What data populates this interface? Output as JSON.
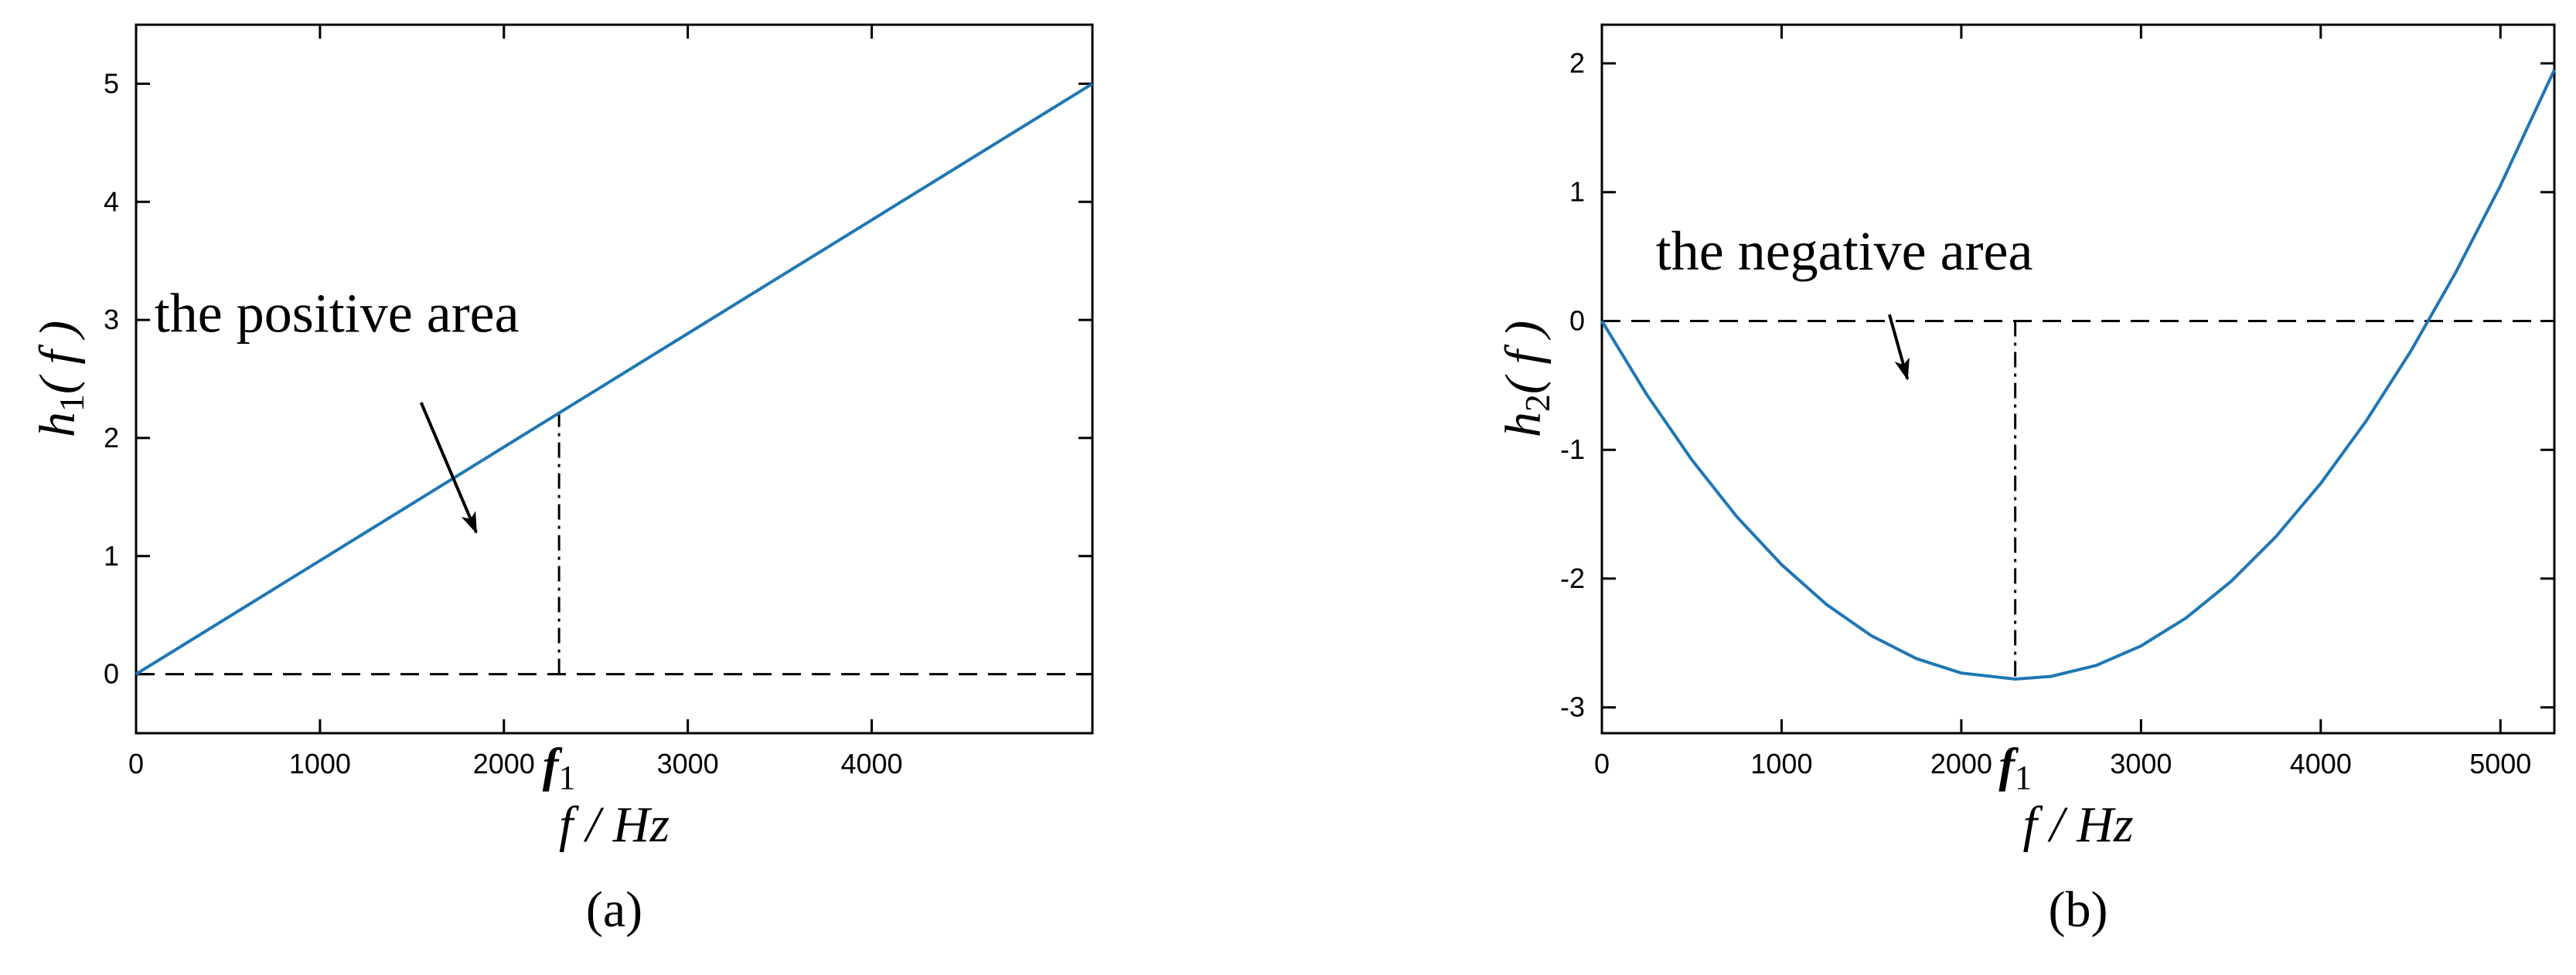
{
  "chart_data": [
    {
      "type": "line",
      "panel_label": "(a)",
      "x_label": "f / Hz",
      "y_label": {
        "base": "h",
        "sub": "1",
        "rest": "( f )"
      },
      "x": [
        0,
        5200
      ],
      "series": [
        {
          "color": "#1f77b4",
          "values": [
            0,
            5
          ]
        }
      ],
      "xlim": [
        0,
        5200
      ],
      "ylim": [
        -0.5,
        5.5
      ],
      "xticks": [
        0,
        1000,
        2000,
        3000,
        4000
      ],
      "yticks": [
        0,
        1,
        2,
        3,
        4,
        5
      ],
      "reference_line": 0,
      "marker": {
        "x": 2300,
        "y": [
          0,
          2.2
        ],
        "label": "f",
        "label_sub": "1"
      },
      "annotation": {
        "text": "the positive area",
        "x": 100,
        "y": 2.9,
        "arrow_from": [
          1550,
          2.3
        ],
        "arrow_to": [
          1850,
          1.2
        ]
      }
    },
    {
      "type": "line",
      "panel_label": "(b)",
      "x_label": "f / Hz",
      "y_label": {
        "base": "h",
        "sub": "2",
        "rest": "( f )"
      },
      "x": [
        0,
        250,
        500,
        750,
        1000,
        1250,
        1500,
        1750,
        2000,
        2300,
        2500,
        2750,
        3000,
        3250,
        3500,
        3750,
        4000,
        4250,
        4500,
        4750,
        5000,
        5300
      ],
      "series": [
        {
          "color": "#1f77b4",
          "values": [
            0,
            -0.572,
            -1.077,
            -1.518,
            -1.892,
            -2.201,
            -2.444,
            -2.621,
            -2.733,
            -2.78,
            -2.759,
            -2.674,
            -2.523,
            -2.306,
            -2.023,
            -1.675,
            -1.261,
            -0.782,
            -0.237,
            0.374,
            1.051,
            1.95
          ]
        }
      ],
      "xlim": [
        0,
        5300
      ],
      "ylim": [
        -3.2,
        2.3
      ],
      "xticks": [
        0,
        1000,
        2000,
        3000,
        4000,
        5000
      ],
      "yticks": [
        -3,
        -2,
        -1,
        0,
        1,
        2
      ],
      "reference_line": 0,
      "marker": {
        "x": 2300,
        "y": [
          0,
          -2.78
        ],
        "label": "f",
        "label_sub": "1"
      },
      "annotation": {
        "text": "the negative area",
        "x": 300,
        "y": 0.4,
        "arrow_from": [
          1600,
          0.05
        ],
        "arrow_to": [
          1700,
          -0.45
        ]
      }
    }
  ]
}
